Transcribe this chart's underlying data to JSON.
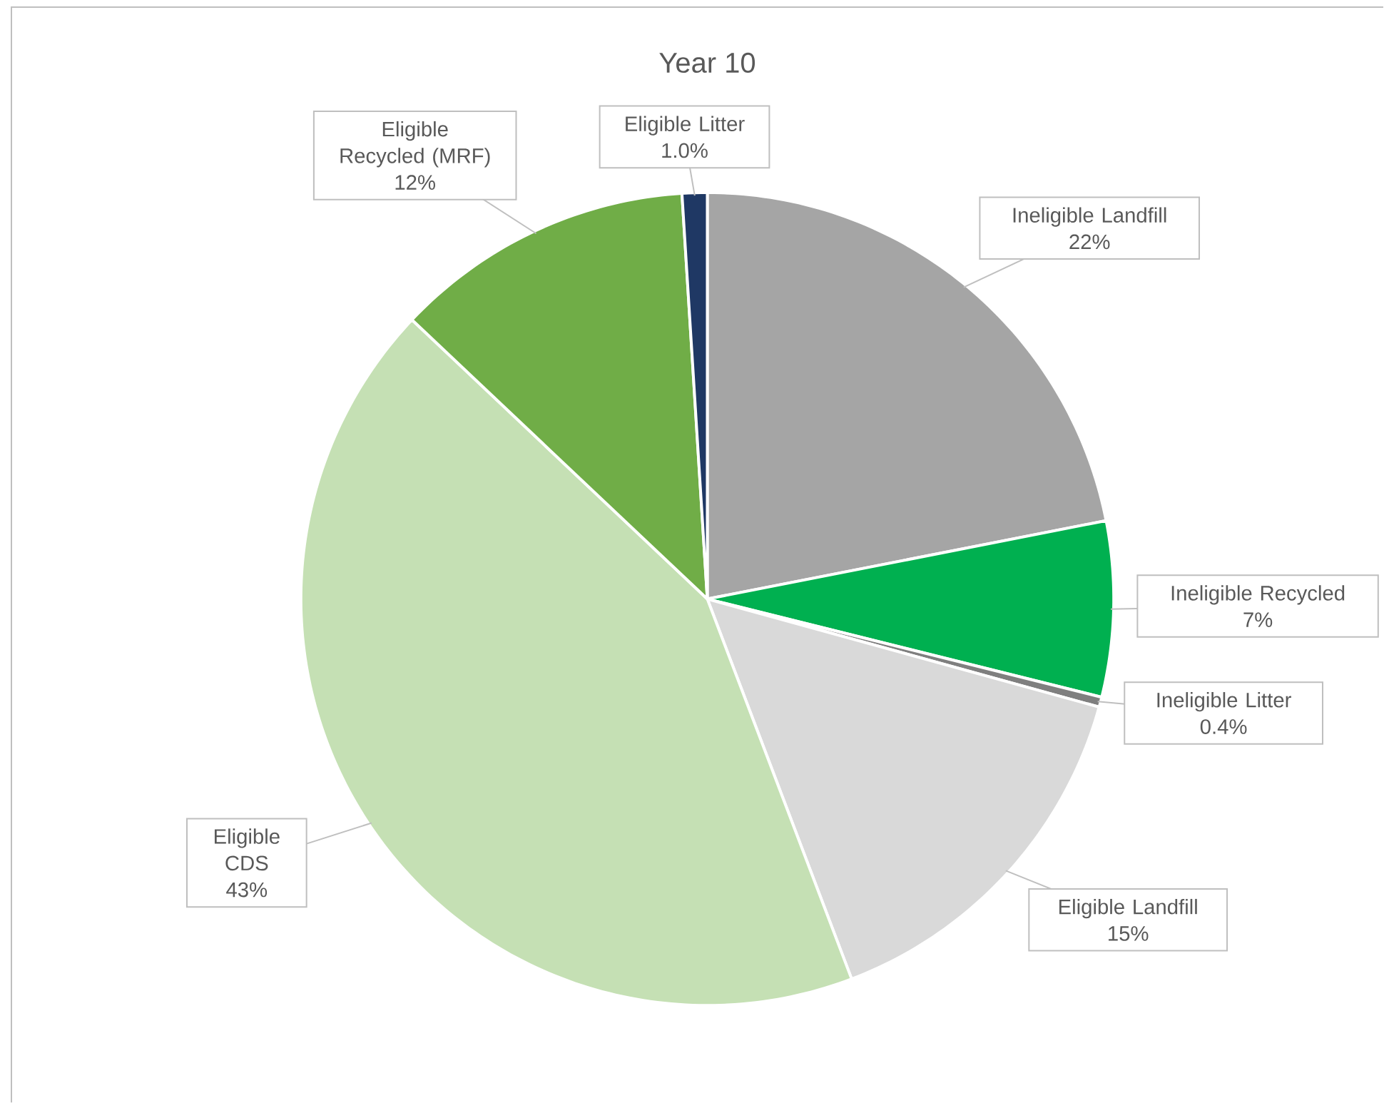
{
  "chart_data": {
    "type": "pie",
    "title": "Year 10",
    "categories": [
      "Ineligible Landfill",
      "Ineligible Recycled",
      "Ineligible Litter",
      "Eligible Landfill",
      "Eligible CDS",
      "Eligible Recycled (MRF)",
      "Eligible Litter"
    ],
    "values": [
      22,
      7,
      0.4,
      15,
      43,
      12,
      1.0
    ],
    "value_labels": [
      "22%",
      "7%",
      "0.4%",
      "15%",
      "43%",
      "12%",
      "1.0%"
    ],
    "colors": [
      "#a5a5a5",
      "#00b050",
      "#7f7f7f",
      "#d9d9d9",
      "#c5e0b4",
      "#70ad47",
      "#1f3864"
    ]
  }
}
